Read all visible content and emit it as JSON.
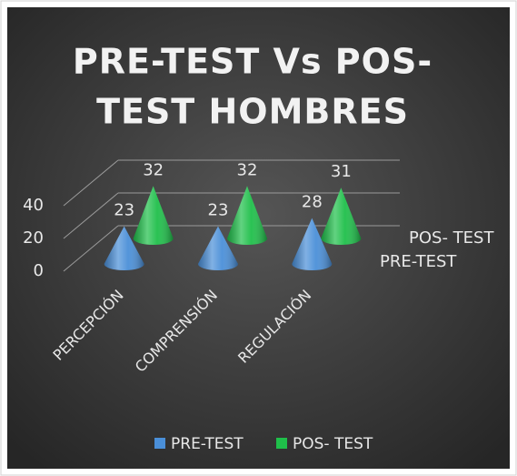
{
  "chart_data": {
    "type": "cone3d",
    "title": [
      "PRE-TEST Vs POS-",
      "TEST HOMBRES"
    ],
    "categories": [
      "PERCEPCIÓN",
      "COMPRENSIÓN",
      "REGULACIÓN"
    ],
    "series": [
      {
        "name": "PRE-TEST",
        "color": "#4a8fd8",
        "values": [
          23,
          23,
          28
        ]
      },
      {
        "name": "POS- TEST",
        "color": "#1fbf4a",
        "values": [
          32,
          32,
          31
        ]
      }
    ],
    "ylim": [
      0,
      40
    ],
    "yticks": [
      0,
      20,
      40
    ],
    "grid": true,
    "legend": "bottom"
  }
}
